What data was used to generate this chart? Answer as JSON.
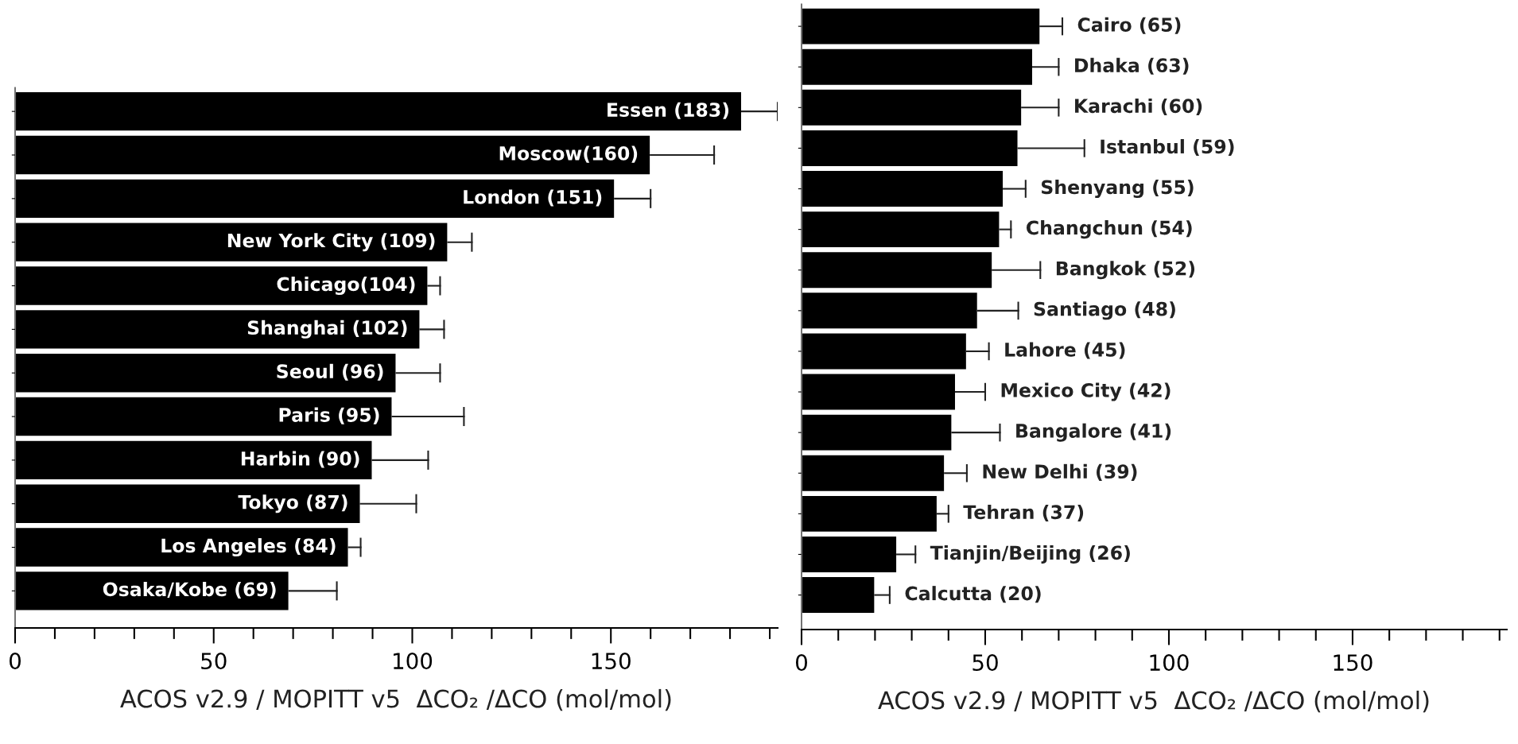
{
  "chart_data": [
    {
      "type": "bar",
      "orientation": "horizontal",
      "xlabel": "ACOS v2.9 / MOPITT v5  ΔCO₂ /ΔCO (mol/mol)",
      "categories": [
        "Essen (183)",
        "Moscow(160)",
        "London (151)",
        "New York City (109)",
        "Chicago(104)",
        "Shanghai (102)",
        "Seoul (96)",
        "Paris (95)",
        "Harbin (90)",
        "Tokyo (87)",
        "Los Angeles (84)",
        "Osaka/Kobe (69)"
      ],
      "series": [
        {
          "color": "#000000",
          "values": [
            183,
            160,
            151,
            109,
            104,
            102,
            96,
            95,
            90,
            87,
            84,
            69
          ],
          "errors": [
            [
              183,
              192
            ],
            [
              160,
              176
            ],
            [
              151,
              160
            ],
            [
              109,
              115
            ],
            [
              104,
              107
            ],
            [
              102,
              108
            ],
            [
              96,
              107
            ],
            [
              95,
              113
            ],
            [
              90,
              104
            ],
            [
              87,
              101
            ],
            [
              84,
              87
            ],
            [
              69,
              81
            ]
          ]
        }
      ],
      "xlim": [
        0,
        192
      ],
      "xticks": [
        0,
        {
          "value": 10,
          "label": null
        },
        {
          "value": 20,
          "label": null
        },
        {
          "value": 30,
          "label": null
        },
        {
          "value": 40,
          "label": null
        },
        50,
        {
          "value": 60,
          "label": null
        },
        {
          "value": 70,
          "label": null
        },
        {
          "value": 80,
          "label": null
        },
        {
          "value": 90,
          "label": null
        },
        100,
        {
          "value": 110,
          "label": null
        },
        {
          "value": 120,
          "label": null
        },
        {
          "value": 130,
          "label": null
        },
        {
          "value": 140,
          "label": null
        },
        150,
        {
          "value": 160,
          "label": null
        },
        {
          "value": 170,
          "label": null
        },
        {
          "value": 180,
          "label": null
        },
        {
          "value": 190,
          "label": null
        }
      ],
      "grid": false,
      "legend": false
    },
    {
      "type": "bar",
      "orientation": "horizontal",
      "xlabel": "ACOS v2.9 / MOPITT v5  ΔCO₂ /ΔCO (mol/mol)",
      "categories": [
        "Cairo (65)",
        "Dhaka (63)",
        "Karachi (60)",
        "Istanbul (59)",
        "Shenyang (55)",
        "Changchun (54)",
        "Bangkok (52)",
        "Santiago (48)",
        "Lahore (45)",
        "Mexico City (42)",
        "Bangalore (41)",
        "New Delhi (39)",
        "Tehran (37)",
        "Tianjin/Beijing (26)",
        "Calcutta (20)"
      ],
      "series": [
        {
          "color": "#000000",
          "values": [
            65,
            63,
            60,
            59,
            55,
            54,
            52,
            48,
            45,
            42,
            41,
            39,
            37,
            26,
            20
          ],
          "errors": [
            [
              65,
              71
            ],
            [
              63,
              70
            ],
            [
              60,
              70
            ],
            [
              59,
              77
            ],
            [
              55,
              61
            ],
            [
              54,
              57
            ],
            [
              52,
              65
            ],
            [
              48,
              59
            ],
            [
              45,
              51
            ],
            [
              42,
              50
            ],
            [
              41,
              54
            ],
            [
              39,
              45
            ],
            [
              37,
              40
            ],
            [
              26,
              31
            ],
            [
              20,
              24
            ]
          ]
        }
      ],
      "xlim": [
        0,
        192
      ],
      "xticks": [
        0,
        {
          "value": 10,
          "label": null
        },
        {
          "value": 20,
          "label": null
        },
        {
          "value": 30,
          "label": null
        },
        {
          "value": 40,
          "label": null
        },
        50,
        {
          "value": 60,
          "label": null
        },
        {
          "value": 70,
          "label": null
        },
        {
          "value": 80,
          "label": null
        },
        {
          "value": 90,
          "label": null
        },
        100,
        {
          "value": 110,
          "label": null
        },
        {
          "value": 120,
          "label": null
        },
        {
          "value": 130,
          "label": null
        },
        {
          "value": 140,
          "label": null
        },
        150,
        {
          "value": 160,
          "label": null
        },
        {
          "value": 170,
          "label": null
        },
        {
          "value": 180,
          "label": null
        },
        {
          "value": 190,
          "label": null
        }
      ],
      "grid": false,
      "legend": false
    }
  ]
}
